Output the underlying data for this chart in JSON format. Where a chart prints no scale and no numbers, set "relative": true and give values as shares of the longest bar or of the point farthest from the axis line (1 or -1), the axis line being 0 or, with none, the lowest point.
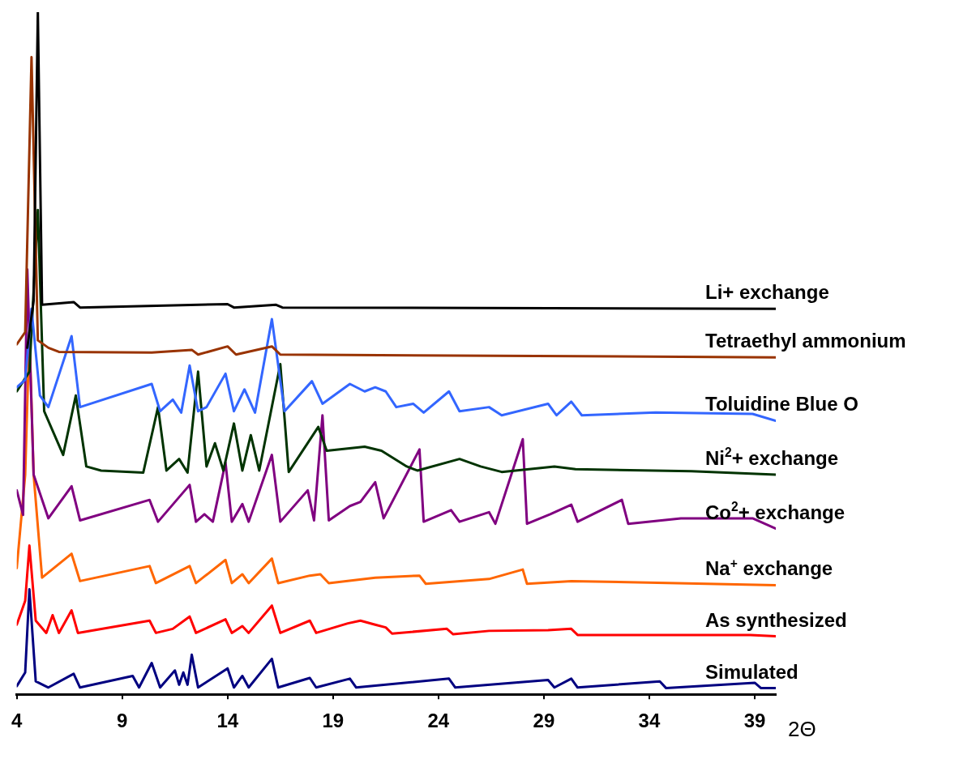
{
  "chart_data": {
    "type": "line",
    "relative": true,
    "xlabel": "2Θ",
    "xlim": [
      4,
      40
    ],
    "xticks": [
      4,
      9,
      14,
      19,
      24,
      29,
      34,
      39
    ],
    "marker": "none",
    "line_style": "solid",
    "series": [
      {
        "name": "Li+ exchange",
        "color": "#000000",
        "x": [
          4.5,
          4.8,
          5.0,
          5.2,
          6.7,
          7.0,
          14.0,
          14.3,
          16.3,
          16.6,
          40.0
        ],
        "values": [
          0.508,
          0.577,
          1.0,
          0.571,
          0.575,
          0.567,
          0.572,
          0.567,
          0.571,
          0.567,
          0.565
        ]
      },
      {
        "name": "Tetraethyl ammonium",
        "color": "#993300",
        "x": [
          4.0,
          4.4,
          4.7,
          5.0,
          5.5,
          6.0,
          10.4,
          12.3,
          12.6,
          14.0,
          14.4,
          16.1,
          16.5,
          40.0
        ],
        "values": [
          0.513,
          0.531,
          0.934,
          0.519,
          0.508,
          0.502,
          0.501,
          0.505,
          0.498,
          0.51,
          0.498,
          0.51,
          0.498,
          0.494
        ]
      },
      {
        "name": "Toluidine Blue O",
        "color": "#3366ff",
        "x": [
          4.0,
          4.4,
          4.7,
          5.1,
          5.5,
          6.6,
          7.0,
          10.4,
          10.8,
          11.4,
          11.8,
          12.2,
          12.6,
          13.0,
          13.9,
          14.3,
          14.8,
          15.3,
          16.1,
          16.7,
          18.0,
          18.5,
          19.8,
          20.5,
          21.0,
          21.5,
          22.0,
          22.8,
          23.3,
          24.5,
          25.0,
          26.4,
          27.0,
          29.2,
          29.6,
          30.3,
          30.8,
          34.3,
          38.9,
          40.0
        ],
        "values": [
          0.45,
          0.461,
          0.565,
          0.438,
          0.421,
          0.525,
          0.421,
          0.455,
          0.415,
          0.432,
          0.413,
          0.482,
          0.415,
          0.421,
          0.47,
          0.415,
          0.447,
          0.413,
          0.55,
          0.415,
          0.459,
          0.426,
          0.455,
          0.444,
          0.45,
          0.444,
          0.421,
          0.426,
          0.413,
          0.444,
          0.415,
          0.421,
          0.409,
          0.426,
          0.409,
          0.429,
          0.409,
          0.413,
          0.411,
          0.401
        ]
      },
      {
        "name": "Ni$^{2}$+ exchange",
        "color": "#003300",
        "x": [
          4.0,
          4.6,
          5.0,
          5.3,
          6.2,
          6.8,
          7.3,
          8.0,
          10.0,
          10.7,
          11.1,
          11.7,
          12.1,
          12.6,
          13.0,
          13.4,
          13.8,
          14.3,
          14.7,
          15.1,
          15.5,
          16.5,
          16.9,
          18.3,
          18.7,
          20.5,
          21.3,
          22.5,
          23.0,
          25.0,
          26.0,
          27.0,
          29.5,
          30.5,
          36.0,
          40.0
        ],
        "values": [
          0.444,
          0.473,
          0.71,
          0.415,
          0.351,
          0.438,
          0.334,
          0.328,
          0.325,
          0.421,
          0.328,
          0.345,
          0.325,
          0.473,
          0.334,
          0.368,
          0.328,
          0.397,
          0.328,
          0.38,
          0.328,
          0.484,
          0.326,
          0.392,
          0.357,
          0.363,
          0.357,
          0.334,
          0.328,
          0.345,
          0.334,
          0.326,
          0.334,
          0.33,
          0.327,
          0.322
        ]
      },
      {
        "name": "Co$^{2}$+ exchange",
        "color": "#800080",
        "x": [
          4.0,
          4.3,
          4.5,
          4.8,
          5.5,
          6.6,
          7.0,
          10.3,
          10.7,
          12.2,
          12.5,
          12.9,
          13.3,
          13.9,
          14.2,
          14.7,
          15.0,
          16.1,
          16.5,
          17.8,
          18.1,
          18.5,
          18.8,
          19.8,
          20.3,
          21.0,
          21.4,
          23.1,
          23.3,
          24.6,
          25.0,
          26.4,
          26.7,
          28.0,
          28.2,
          29.3,
          30.3,
          30.6,
          32.7,
          33.0,
          35.5,
          38.9,
          40.0
        ],
        "values": [
          0.299,
          0.263,
          0.623,
          0.322,
          0.258,
          0.305,
          0.255,
          0.285,
          0.253,
          0.307,
          0.253,
          0.264,
          0.253,
          0.34,
          0.253,
          0.279,
          0.253,
          0.351,
          0.253,
          0.299,
          0.255,
          0.409,
          0.255,
          0.276,
          0.282,
          0.311,
          0.258,
          0.359,
          0.253,
          0.27,
          0.253,
          0.267,
          0.25,
          0.374,
          0.25,
          0.264,
          0.278,
          0.253,
          0.285,
          0.25,
          0.258,
          0.258,
          0.243
        ]
      },
      {
        "name": "Na$^{+}$ exchange",
        "color": "#ff6600",
        "x": [
          4.0,
          4.4,
          4.6,
          4.8,
          5.2,
          6.6,
          7.0,
          10.3,
          10.6,
          12.2,
          12.5,
          13.9,
          14.2,
          14.7,
          15.0,
          16.1,
          16.4,
          17.9,
          18.4,
          18.8,
          21.0,
          23.1,
          23.4,
          26.4,
          28.0,
          28.2,
          30.3,
          40.0
        ],
        "values": [
          0.185,
          0.322,
          0.531,
          0.322,
          0.171,
          0.206,
          0.166,
          0.188,
          0.163,
          0.188,
          0.163,
          0.197,
          0.163,
          0.176,
          0.163,
          0.199,
          0.163,
          0.174,
          0.176,
          0.163,
          0.171,
          0.174,
          0.162,
          0.169,
          0.183,
          0.162,
          0.166,
          0.16
        ]
      },
      {
        "name": "As synthesized",
        "color": "#ff0000",
        "x": [
          4.0,
          4.4,
          4.6,
          4.9,
          5.4,
          5.7,
          6.0,
          6.6,
          6.9,
          10.3,
          10.6,
          11.4,
          12.2,
          12.5,
          13.9,
          14.2,
          14.7,
          15.0,
          16.1,
          16.5,
          17.9,
          18.2,
          19.7,
          20.3,
          21.0,
          21.5,
          21.8,
          24.4,
          24.7,
          26.4,
          29.2,
          30.3,
          30.6,
          38.8,
          40.0
        ],
        "values": [
          0.102,
          0.137,
          0.218,
          0.108,
          0.09,
          0.116,
          0.09,
          0.123,
          0.09,
          0.108,
          0.09,
          0.096,
          0.114,
          0.09,
          0.11,
          0.09,
          0.1,
          0.09,
          0.13,
          0.09,
          0.108,
          0.09,
          0.104,
          0.108,
          0.102,
          0.098,
          0.089,
          0.096,
          0.088,
          0.093,
          0.094,
          0.096,
          0.087,
          0.087,
          0.085
        ]
      },
      {
        "name": "Simulated",
        "color": "#000080",
        "x": [
          4.0,
          4.4,
          4.6,
          4.9,
          5.5,
          6.7,
          7.0,
          9.5,
          9.8,
          10.4,
          10.8,
          11.5,
          11.7,
          11.9,
          12.1,
          12.3,
          12.6,
          14.0,
          14.3,
          14.7,
          15.0,
          16.1,
          16.4,
          17.9,
          18.2,
          19.8,
          20.1,
          24.5,
          24.8,
          29.2,
          29.5,
          30.3,
          30.6,
          34.5,
          34.8,
          39.0,
          39.3,
          40.0
        ],
        "values": [
          0.012,
          0.032,
          0.154,
          0.019,
          0.01,
          0.03,
          0.01,
          0.027,
          0.01,
          0.046,
          0.01,
          0.035,
          0.014,
          0.032,
          0.014,
          0.058,
          0.01,
          0.038,
          0.01,
          0.027,
          0.01,
          0.052,
          0.01,
          0.024,
          0.01,
          0.023,
          0.01,
          0.023,
          0.01,
          0.021,
          0.01,
          0.023,
          0.01,
          0.019,
          0.009,
          0.017,
          0.009,
          0.009
        ]
      }
    ]
  }
}
